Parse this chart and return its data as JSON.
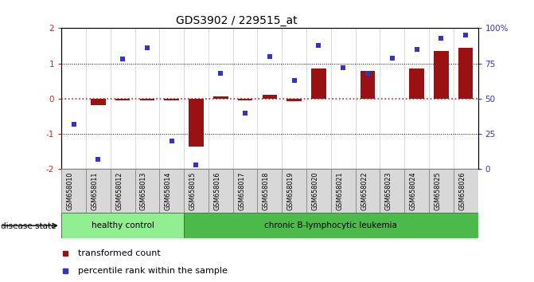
{
  "title": "GDS3902 / 229515_at",
  "samples": [
    "GSM658010",
    "GSM658011",
    "GSM658012",
    "GSM658013",
    "GSM658014",
    "GSM658015",
    "GSM658016",
    "GSM658017",
    "GSM658018",
    "GSM658019",
    "GSM658020",
    "GSM658021",
    "GSM658022",
    "GSM658023",
    "GSM658024",
    "GSM658025",
    "GSM658026"
  ],
  "bar_values": [
    0.0,
    -0.18,
    -0.04,
    -0.04,
    -0.04,
    -1.35,
    0.07,
    -0.04,
    0.12,
    -0.07,
    0.85,
    0.0,
    0.78,
    0.0,
    0.85,
    1.35,
    1.45
  ],
  "scatter_values": [
    32,
    7,
    78,
    86,
    20,
    3,
    68,
    40,
    80,
    63,
    88,
    72,
    68,
    79,
    85,
    93,
    95
  ],
  "disease_groups": [
    {
      "label": "healthy control",
      "start": 0,
      "end": 5,
      "color": "#90ee90"
    },
    {
      "label": "chronic B-lymphocytic leukemia",
      "start": 5,
      "end": 17,
      "color": "#4cbb4c"
    }
  ],
  "bar_color": "#9b1010",
  "scatter_color": "#3333cc",
  "ylim_left": [
    -2,
    2
  ],
  "yticks_left": [
    -2,
    -1,
    0,
    1,
    2
  ],
  "yticks_right": [
    0,
    25,
    50,
    75,
    100
  ],
  "yticklabels_right": [
    "0",
    "25",
    "50",
    "75",
    "100%"
  ],
  "zero_line_color": "#cc2222",
  "legend_items": [
    {
      "label": "transformed count",
      "color": "#9b1010"
    },
    {
      "label": "percentile rank within the sample",
      "color": "#3333cc"
    }
  ],
  "disease_state_label": "disease state"
}
